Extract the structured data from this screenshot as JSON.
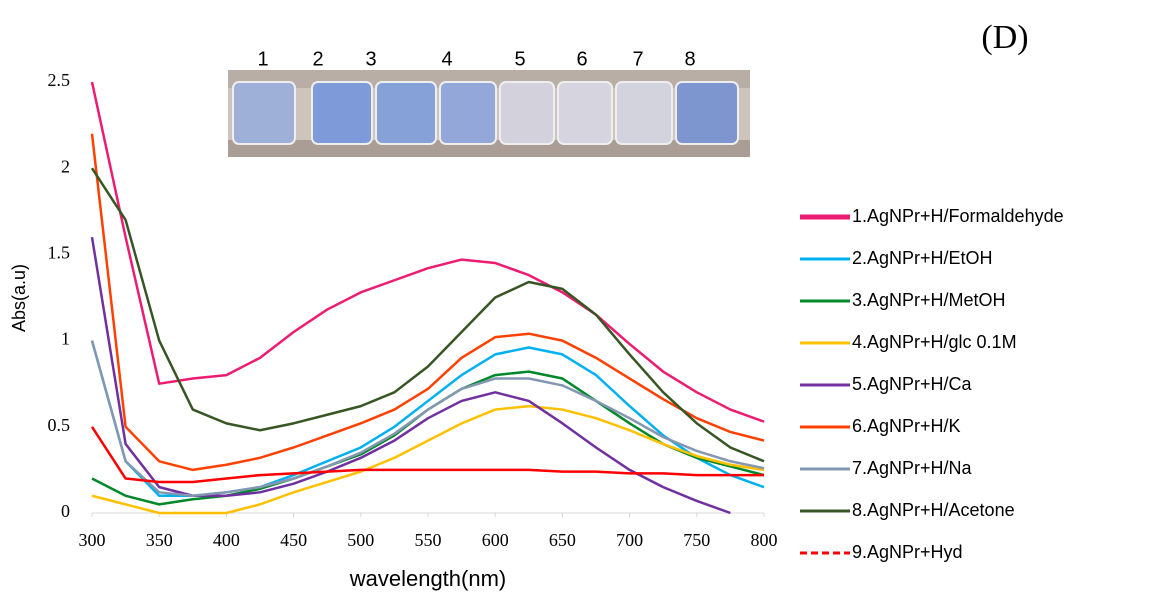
{
  "chart_data": {
    "type": "line",
    "panel_label": "(D)",
    "inset_labels": [
      "1",
      "2",
      "3",
      "4",
      "5",
      "6",
      "7",
      "8"
    ],
    "x_label": "wavelength(nm)",
    "y_label": "Abs(a.u)",
    "xlim": [
      300,
      800
    ],
    "xticks": [
      300,
      350,
      400,
      450,
      500,
      550,
      600,
      650,
      700,
      750,
      800
    ],
    "ylim": [
      0,
      2.5
    ],
    "yticks": [
      0,
      0.5,
      1,
      1.5,
      2,
      2.5
    ],
    "grid": false,
    "legend": "right",
    "x": [
      300,
      325,
      350,
      375,
      400,
      425,
      450,
      475,
      500,
      525,
      550,
      575,
      600,
      625,
      650,
      675,
      700,
      725,
      750,
      775,
      800
    ],
    "series": [
      {
        "name": "1.AgNPr+H/Formaldehyde",
        "color": "#ec1c73",
        "values": [
          2.5,
          1.6,
          0.75,
          0.78,
          0.8,
          0.9,
          1.05,
          1.18,
          1.28,
          1.35,
          1.42,
          1.47,
          1.45,
          1.38,
          1.28,
          1.15,
          0.98,
          0.82,
          0.7,
          0.6,
          0.53
        ]
      },
      {
        "name": "2.AgNPr+H/EtOH",
        "color": "#00b0f0",
        "values": [
          1.0,
          0.3,
          0.1,
          0.1,
          0.12,
          0.15,
          0.22,
          0.3,
          0.38,
          0.5,
          0.65,
          0.8,
          0.92,
          0.96,
          0.92,
          0.8,
          0.62,
          0.45,
          0.32,
          0.22,
          0.15
        ]
      },
      {
        "name": "3.AgNPr+H/MetOH",
        "color": "#00882a",
        "values": [
          0.2,
          0.1,
          0.05,
          0.08,
          0.1,
          0.14,
          0.2,
          0.27,
          0.34,
          0.45,
          0.6,
          0.72,
          0.8,
          0.82,
          0.78,
          0.65,
          0.52,
          0.4,
          0.32,
          0.27,
          0.22
        ]
      },
      {
        "name": "4.AgNPr+H/glc 0.1M",
        "color": "#ffc000",
        "values": [
          0.1,
          0.05,
          0.0,
          0.0,
          0.0,
          0.05,
          0.12,
          0.18,
          0.24,
          0.32,
          0.42,
          0.52,
          0.6,
          0.62,
          0.6,
          0.55,
          0.48,
          0.4,
          0.33,
          0.28,
          0.25
        ]
      },
      {
        "name": "5.AgNPr+H/Ca",
        "color": "#7030a0",
        "values": [
          1.6,
          0.4,
          0.15,
          0.1,
          0.1,
          0.12,
          0.17,
          0.24,
          0.32,
          0.42,
          0.55,
          0.65,
          0.7,
          0.65,
          0.52,
          0.38,
          0.25,
          0.15,
          0.07,
          0.0,
          null
        ]
      },
      {
        "name": "6.AgNPr+H/K",
        "color": "#ff4000",
        "values": [
          2.2,
          0.5,
          0.3,
          0.25,
          0.28,
          0.32,
          0.38,
          0.45,
          0.52,
          0.6,
          0.72,
          0.9,
          1.02,
          1.04,
          1.0,
          0.9,
          0.78,
          0.66,
          0.55,
          0.47,
          0.42
        ]
      },
      {
        "name": "7.AgNPr+H/Na",
        "color": "#8497b0",
        "values": [
          1.0,
          0.3,
          0.12,
          0.1,
          0.12,
          0.15,
          0.2,
          0.27,
          0.35,
          0.46,
          0.6,
          0.72,
          0.78,
          0.78,
          0.74,
          0.65,
          0.55,
          0.44,
          0.36,
          0.3,
          0.26
        ]
      },
      {
        "name": "8.AgNPr+H/Acetone",
        "color": "#375623",
        "values": [
          2.0,
          1.7,
          1.0,
          0.6,
          0.52,
          0.48,
          0.52,
          0.57,
          0.62,
          0.7,
          0.85,
          1.05,
          1.25,
          1.34,
          1.3,
          1.15,
          0.92,
          0.7,
          0.52,
          0.38,
          0.3
        ]
      },
      {
        "name": "9.AgNPr+Hyd",
        "color": "#ff0000",
        "dash": "dashed",
        "values": [
          0.5,
          0.2,
          0.18,
          0.18,
          0.2,
          0.22,
          0.23,
          0.24,
          0.25,
          0.25,
          0.25,
          0.25,
          0.25,
          0.25,
          0.24,
          0.24,
          0.23,
          0.23,
          0.22,
          0.22,
          0.22
        ]
      }
    ]
  }
}
